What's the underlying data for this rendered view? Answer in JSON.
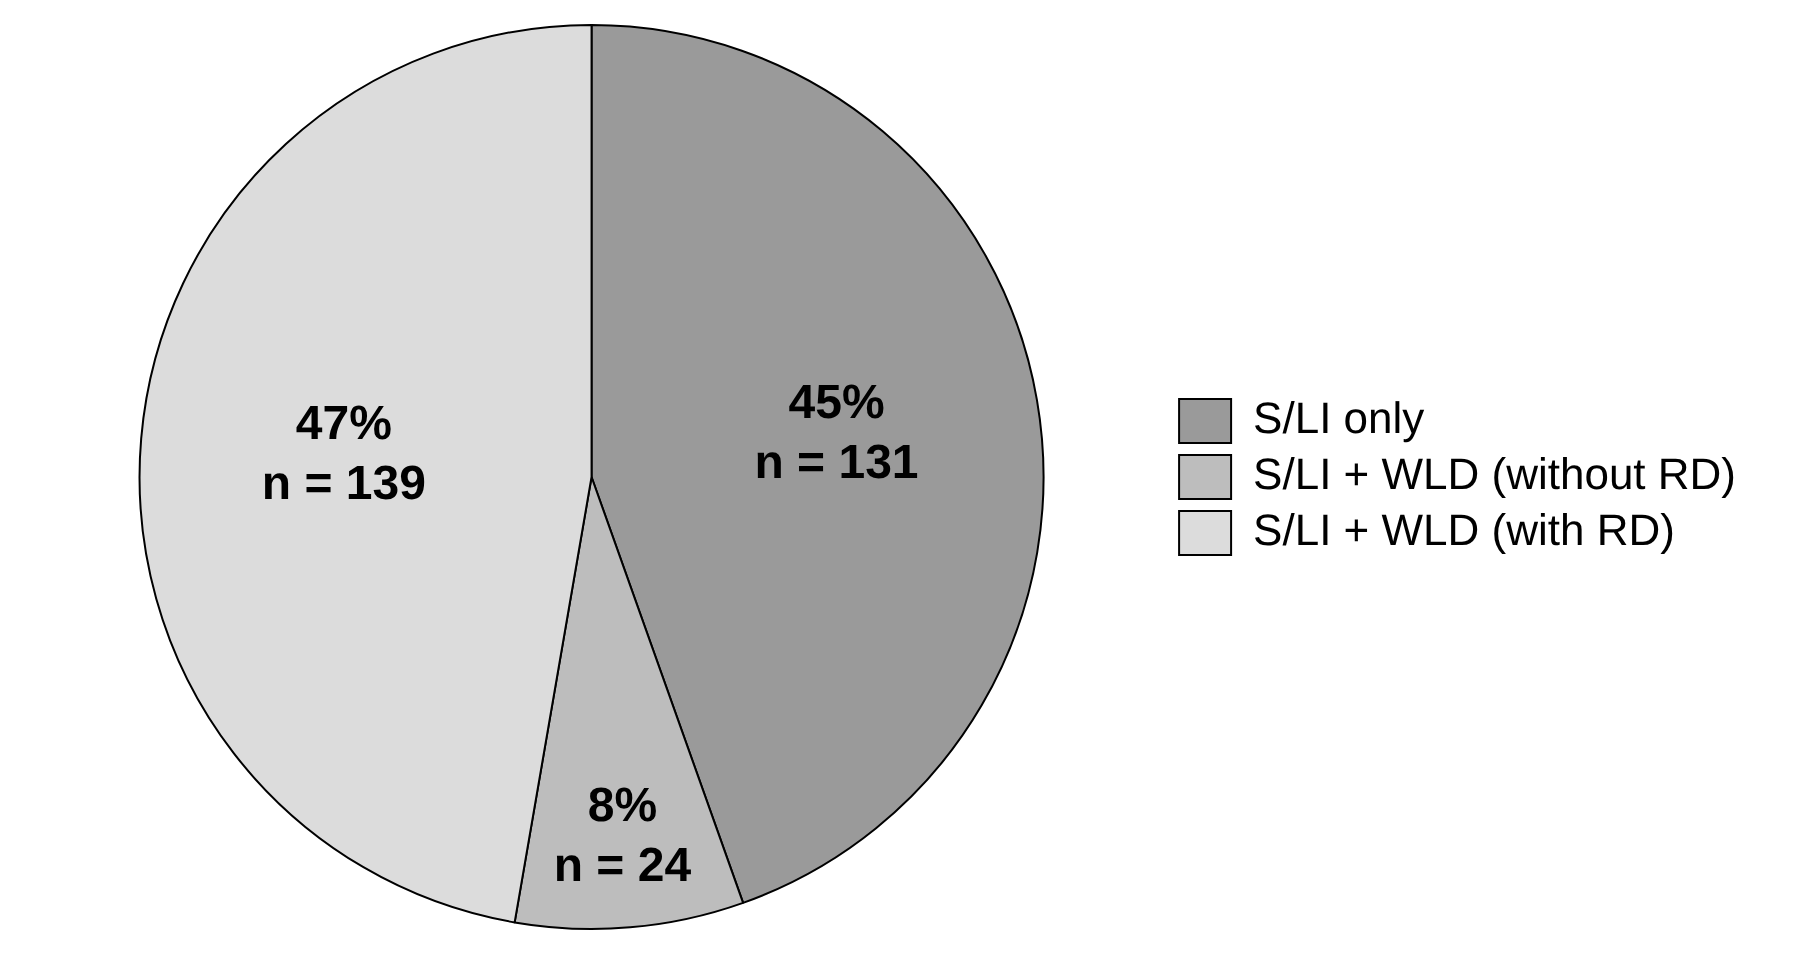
{
  "chart_data": {
    "type": "pie",
    "categories": [
      "S/LI only",
      "S/LI + WLD (without RD)",
      "S/LI + WLD (with RD)"
    ],
    "values": [
      131,
      24,
      139
    ],
    "colors": [
      "#9a9a9a",
      "#bdbdbd",
      "#dcdcdc"
    ],
    "value_labels": [
      "45%\nn = 131",
      "8%\nn = 24",
      "47%\nn = 139"
    ],
    "legend": "right"
  }
}
